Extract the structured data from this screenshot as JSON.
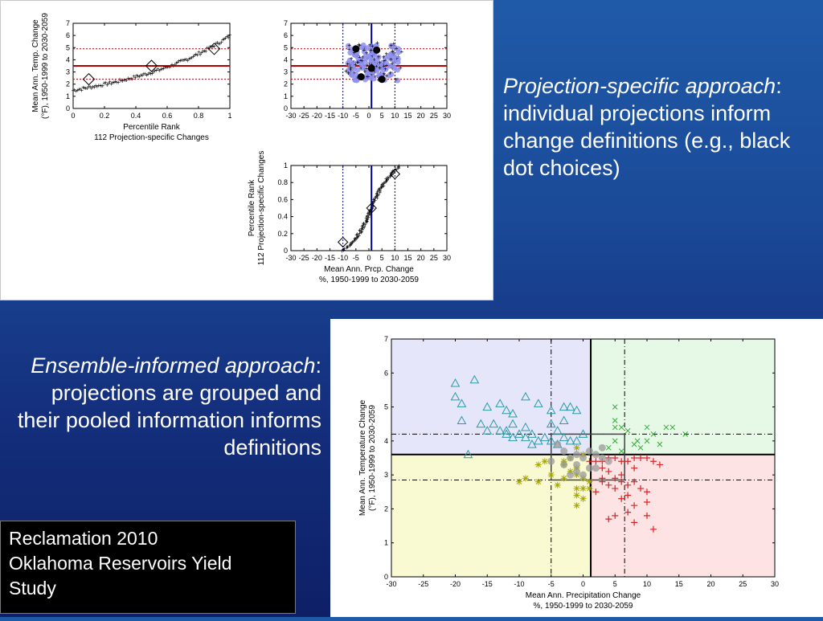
{
  "captions": {
    "top": {
      "emph": "Projection-specific approach",
      "rest": ":  individual projections inform change definitions (e.g., black dot choices)"
    },
    "bottom": {
      "emph": "Ensemble-informed approach",
      "rest": ":  projections are grouped and their pooled information informs definitions"
    }
  },
  "credit": {
    "line1": "Reclamation 2010",
    "line2": "Oklahoma Reservoirs Yield",
    "line3": "Study"
  },
  "colors": {
    "temp_points": "#e87878",
    "prcp_points": "#8f8ff0",
    "reference_line": "#b00000",
    "divider_line": "#000080",
    "q1_bg": "#e6e6fa",
    "q2_bg": "#e6f8e6",
    "q3_bg": "#fafad2",
    "q4_bg": "#fde3e3",
    "triangle": "#2a9aa6",
    "cross": "#3aa83a",
    "star": "#a7a700",
    "plus": "#e02020"
  },
  "chart_data": [
    {
      "id": "temp-percentile",
      "type": "scatter",
      "title": "",
      "xlabel": [
        "Percentile Rank",
        "112 Projection-specific Changes"
      ],
      "ylabel": [
        "Mean Ann. Temp. Change",
        "(°F), 1950-1999 to 2030-2059"
      ],
      "xlim": [
        0,
        1
      ],
      "ylim": [
        0,
        7
      ],
      "xticks": [
        "0",
        "0.2",
        "0.4",
        "0.6",
        "0.8",
        "1"
      ],
      "yticks": [
        "0",
        "1",
        "2",
        "3",
        "4",
        "5",
        "6",
        "7"
      ],
      "series_points": "112 points, temperature change sorted vs percentile rank, from 1.5 at rank 0 to 6.0 at rank 1",
      "markers": [
        {
          "x": 0.1,
          "y": 2.4
        },
        {
          "x": 0.5,
          "y": 3.5
        },
        {
          "x": 0.9,
          "y": 4.9
        }
      ],
      "hlines": [
        {
          "y": 3.5,
          "style": "solid"
        },
        {
          "y": 2.4,
          "style": "dotted"
        },
        {
          "y": 4.9,
          "style": "dotted"
        }
      ],
      "grid": false
    },
    {
      "id": "temp-vs-prcp",
      "type": "scatter",
      "title": "",
      "xlim": [
        -30,
        30
      ],
      "ylim": [
        0,
        7
      ],
      "xticks": [
        "-30",
        "-25",
        "-20",
        "-15",
        "-10",
        "-5",
        "0",
        "5",
        "10",
        "15",
        "20",
        "25",
        "30"
      ],
      "yticks": [
        "0",
        "1",
        "2",
        "3",
        "4",
        "5",
        "6",
        "7"
      ],
      "cloud": {
        "x_range": [
          -8,
          12
        ],
        "y_range": [
          2.3,
          5.2
        ],
        "count": 112
      },
      "black_dots": [
        {
          "x": -5,
          "y": 4.9
        },
        {
          "x": 3,
          "y": 4.8
        },
        {
          "x": -3,
          "y": 2.6
        },
        {
          "x": 1,
          "y": 3.3
        },
        {
          "x": 5,
          "y": 2.4
        }
      ],
      "hlines": [
        {
          "y": 3.5,
          "style": "solid"
        },
        {
          "y": 2.4,
          "style": "dotted"
        },
        {
          "y": 4.9,
          "style": "dotted"
        }
      ],
      "vlines": [
        {
          "x": 1,
          "style": "solid"
        },
        {
          "x": -10,
          "style": "dotted"
        },
        {
          "x": 10,
          "style": "dotted"
        }
      ],
      "grid": false
    },
    {
      "id": "percentile-vs-prcp",
      "type": "scatter",
      "title": "",
      "xlabel": [
        "Mean Ann. Prcp. Change",
        "%, 1950-1999 to 2030-2059"
      ],
      "ylabel": [
        "Percentile Rank",
        "112 Projection-specific Changes"
      ],
      "xlim": [
        -30,
        30
      ],
      "ylim": [
        0,
        1
      ],
      "xticks": [
        "-30",
        "-25",
        "-20",
        "-15",
        "-10",
        "-5",
        "0",
        "5",
        "10",
        "15",
        "20",
        "25",
        "30"
      ],
      "yticks": [
        "0",
        "0.2",
        "0.4",
        "0.6",
        "0.8",
        "1"
      ],
      "series_points": "112 points, precipitation change sorted vs percentile rank, from -12 at rank 0 to 12 at rank 1",
      "markers": [
        {
          "x": -10,
          "y": 0.1
        },
        {
          "x": 1,
          "y": 0.5
        },
        {
          "x": 10,
          "y": 0.9
        }
      ],
      "vlines": [
        {
          "x": 1,
          "style": "solid"
        },
        {
          "x": -10,
          "style": "dotted"
        },
        {
          "x": 10,
          "style": "dotted"
        }
      ],
      "grid": false
    },
    {
      "id": "ensemble-quadrants",
      "type": "scatter",
      "title": "",
      "xlabel": [
        "Mean Ann. Precipitation Change",
        "%, 1950-1999 to 2030-2059"
      ],
      "ylabel": [
        "Mean Ann. Temperature Change",
        "(°F), 1950-1999 to 2030-2059"
      ],
      "xlim": [
        -30,
        30
      ],
      "ylim": [
        0,
        7
      ],
      "xticks": [
        "-30",
        "-25",
        "-20",
        "-15",
        "-10",
        "-5",
        "0",
        "5",
        "10",
        "15",
        "20",
        "25",
        "30"
      ],
      "yticks": [
        "0",
        "1",
        "2",
        "3",
        "4",
        "5",
        "6",
        "7"
      ],
      "quadrant_split": {
        "x": 1.2,
        "y": 3.6
      },
      "dashdot": {
        "x": [
          -5,
          6.5
        ],
        "y": [
          2.85,
          4.2
        ]
      },
      "center_box": {
        "x": [
          -5,
          6.5
        ],
        "y": [
          2.85,
          4.2
        ]
      },
      "series": [
        {
          "marker": "triangle",
          "points": [
            [
              -20,
              5.7
            ],
            [
              -17,
              5.8
            ],
            [
              -20,
              5.3
            ],
            [
              -19,
              5.1
            ],
            [
              -15,
              5.0
            ],
            [
              -13,
              5.1
            ],
            [
              -12,
              4.9
            ],
            [
              -11,
              4.8
            ],
            [
              -9,
              5.3
            ],
            [
              -7,
              5.1
            ],
            [
              -5,
              4.9
            ],
            [
              -3,
              5.0
            ],
            [
              -2,
              5.0
            ],
            [
              -1,
              4.9
            ],
            [
              -19,
              4.6
            ],
            [
              -16,
              4.5
            ],
            [
              -14,
              4.5
            ],
            [
              -12,
              4.3
            ],
            [
              -11,
              4.5
            ],
            [
              -10,
              4.2
            ],
            [
              -9,
              4.4
            ],
            [
              -8,
              4.2
            ],
            [
              -7,
              4.0
            ],
            [
              -6,
              4.1
            ],
            [
              -11,
              4.1
            ],
            [
              -9,
              4.1
            ],
            [
              -5,
              4.5
            ],
            [
              -3,
              4.6
            ],
            [
              -4,
              4.3
            ],
            [
              -3,
              4.1
            ],
            [
              -2,
              4.0
            ],
            [
              -4,
              3.9
            ],
            [
              -1,
              4.0
            ],
            [
              0,
              4.2
            ],
            [
              -13,
              4.3
            ],
            [
              -5,
              4.0
            ],
            [
              -8,
              3.9
            ],
            [
              -18,
              3.6
            ],
            [
              -12,
              4.2
            ],
            [
              -15,
              4.3
            ]
          ]
        },
        {
          "marker": "cross",
          "points": [
            [
              5,
              5.0
            ],
            [
              5,
              4.6
            ],
            [
              5,
              4.4
            ],
            [
              6,
              4.4
            ],
            [
              7,
              4.3
            ],
            [
              8,
              3.9
            ],
            [
              8.5,
              4.0
            ],
            [
              9,
              3.8
            ],
            [
              10,
              4.4
            ],
            [
              10,
              4.0
            ],
            [
              11,
              4.2
            ],
            [
              12,
              3.9
            ],
            [
              13,
              4.4
            ],
            [
              14,
              4.4
            ],
            [
              16,
              4.2
            ],
            [
              4,
              3.8
            ],
            [
              6,
              3.7
            ],
            [
              5,
              4.0
            ]
          ]
        },
        {
          "marker": "star",
          "points": [
            [
              -7,
              3.3
            ],
            [
              -6,
              3.4
            ],
            [
              -5,
              3.0
            ],
            [
              -4,
              2.7
            ],
            [
              -3,
              3.4
            ],
            [
              -2,
              3.1
            ],
            [
              -1,
              3.0
            ],
            [
              0,
              2.9
            ],
            [
              -1,
              2.4
            ],
            [
              -1,
              2.1
            ],
            [
              -1,
              2.6
            ],
            [
              0,
              2.6
            ],
            [
              1,
              2.6
            ],
            [
              1,
              2.8
            ],
            [
              -9,
              2.9
            ],
            [
              -10,
              2.8
            ],
            [
              -7,
              2.8
            ],
            [
              -3,
              2.9
            ],
            [
              -2,
              3.5
            ],
            [
              -1,
              3.8
            ],
            [
              -3,
              3.3
            ],
            [
              0,
              3.6
            ],
            [
              -1,
              3.2
            ],
            [
              0,
              2.3
            ]
          ]
        },
        {
          "marker": "plus",
          "points": [
            [
              1,
              3.4
            ],
            [
              2,
              3.4
            ],
            [
              3,
              3.4
            ],
            [
              4,
              3.5
            ],
            [
              5,
              3.5
            ],
            [
              6,
              3.4
            ],
            [
              7,
              3.4
            ],
            [
              8,
              3.5
            ],
            [
              9,
              3.5
            ],
            [
              10,
              3.5
            ],
            [
              11,
              3.4
            ],
            [
              12,
              3.3
            ],
            [
              3,
              3.2
            ],
            [
              4,
              3.1
            ],
            [
              5,
              2.9
            ],
            [
              6,
              2.8
            ],
            [
              7,
              2.7
            ],
            [
              8,
              2.8
            ],
            [
              9,
              2.6
            ],
            [
              10,
              2.5
            ],
            [
              3,
              2.9
            ],
            [
              4,
              2.7
            ],
            [
              7,
              2.4
            ],
            [
              8,
              2.1
            ],
            [
              10,
              2.2
            ],
            [
              5,
              2.6
            ],
            [
              6,
              2.3
            ],
            [
              2,
              2.5
            ],
            [
              3,
              2.8
            ],
            [
              7,
              1.9
            ],
            [
              8,
              1.6
            ],
            [
              10,
              1.8
            ],
            [
              4,
              1.7
            ],
            [
              5,
              1.8
            ],
            [
              11,
              1.4
            ],
            [
              6,
              3.0
            ],
            [
              8,
              3.2
            ]
          ]
        },
        {
          "marker": "gray-cluster",
          "points": [
            [
              -4,
              3.9
            ],
            [
              -3,
              3.7
            ],
            [
              -2,
              3.5
            ],
            [
              -1,
              3.3
            ],
            [
              0,
              3.5
            ],
            [
              1,
              3.7
            ],
            [
              2,
              3.6
            ],
            [
              3,
              3.5
            ],
            [
              4,
              3.4
            ],
            [
              -3,
              3.3
            ],
            [
              -2,
              3.0
            ],
            [
              -1,
              3.1
            ],
            [
              0,
              3.0
            ],
            [
              1,
              3.2
            ],
            [
              -5,
              3.4
            ],
            [
              2,
              3.2
            ],
            [
              -1,
              3.6
            ],
            [
              3,
              3.8
            ]
          ]
        }
      ],
      "grid": false
    }
  ]
}
